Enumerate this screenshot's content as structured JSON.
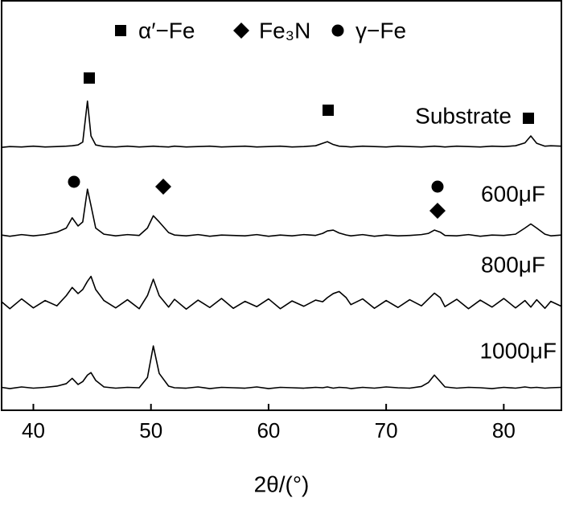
{
  "chart_data": {
    "type": "line",
    "xlabel": "2θ/(°)",
    "legend": [
      {
        "marker": "square",
        "label": "α′−Fe"
      },
      {
        "marker": "diamond",
        "label": "Fe₃N"
      },
      {
        "marker": "circle",
        "label": "γ−Fe"
      }
    ],
    "x": [
      37.3,
      38,
      39,
      40,
      41,
      42,
      42.8,
      43.3,
      43.8,
      44.2,
      44.6,
      44.9,
      45.3,
      46,
      47,
      48,
      49,
      49.7,
      50.2,
      50.7,
      51.5,
      52,
      53,
      54,
      55,
      56,
      57,
      58,
      59,
      60,
      61,
      62,
      63,
      64,
      64.6,
      65,
      65.5,
      66,
      66.6,
      67,
      68,
      69,
      70,
      71,
      72,
      73,
      73.6,
      74.1,
      74.6,
      75,
      76,
      77,
      78,
      79,
      80,
      81,
      81.8,
      82.3,
      82.8,
      83.5,
      84,
      84.9
    ],
    "xlim": [
      37.3,
      84.9
    ],
    "xticks": [
      40,
      50,
      60,
      70,
      80
    ],
    "ylim": [
      0,
      100
    ],
    "series": [
      {
        "name": "Substrate",
        "color": "#000000",
        "values": [
          64.2,
          64.4,
          64.3,
          64.5,
          64.3,
          64.4,
          64.5,
          64.6,
          64.8,
          65.5,
          75.5,
          67,
          64.8,
          64.4,
          64.3,
          64.5,
          64.3,
          64.4,
          64.5,
          64.4,
          64.3,
          64.5,
          64.3,
          64.4,
          64.5,
          64.3,
          64.4,
          64.5,
          64.3,
          64.4,
          64.5,
          64.3,
          64.4,
          64.6,
          65.2,
          65.6,
          64.9,
          64.5,
          64.4,
          64.3,
          64.5,
          64.4,
          64.3,
          64.5,
          64.4,
          64.3,
          64.4,
          64.5,
          64.4,
          64.3,
          64.5,
          64.4,
          64.3,
          64.5,
          64.4,
          64.6,
          65.3,
          67,
          65.2,
          64.5,
          64.6,
          64.5
        ]
      },
      {
        "name": "600μF",
        "color": "#000000",
        "values": [
          42.8,
          42.5,
          42.9,
          42.6,
          42.9,
          43.5,
          44.5,
          47,
          45,
          46,
          54,
          50,
          44.5,
          43,
          42.6,
          42.9,
          42.7,
          44.5,
          47.5,
          46,
          43.4,
          42.8,
          42.6,
          42.9,
          42.5,
          42.8,
          42.7,
          42.6,
          42.9,
          42.5,
          42.8,
          42.6,
          42.9,
          42.7,
          43.2,
          43.8,
          44,
          43.3,
          42.8,
          42.6,
          42.9,
          42.5,
          42.8,
          42.6,
          42.7,
          42.9,
          43.2,
          44,
          43.5,
          42.7,
          42.6,
          42.9,
          42.5,
          42.8,
          42.7,
          43,
          44.5,
          45.5,
          44.5,
          43,
          42.6,
          42.8
        ]
      },
      {
        "name": "800μF",
        "color": "#000000",
        "values": [
          26.5,
          24.8,
          27.2,
          25,
          26.8,
          25.5,
          28,
          30,
          28.5,
          29.5,
          31.5,
          32.7,
          29.5,
          26.8,
          25,
          27,
          24.8,
          28,
          32,
          28,
          25.2,
          27.1,
          24.7,
          26.9,
          25.1,
          27.3,
          24.9,
          26.6,
          25.3,
          27.2,
          24.8,
          26.7,
          25.4,
          26.9,
          26.5,
          27.5,
          28.5,
          29,
          27.5,
          25.8,
          27.2,
          24.9,
          26.8,
          25.1,
          27,
          25.5,
          27.2,
          28.6,
          27.5,
          25.3,
          27.1,
          24.8,
          26.9,
          25.2,
          27.3,
          25,
          26.8,
          25.2,
          27,
          24.9,
          26.6,
          25.4
        ]
      },
      {
        "name": "1000μF",
        "color": "#000000",
        "values": [
          5.6,
          5.3,
          5.7,
          5.4,
          5.6,
          5.9,
          6.5,
          7.8,
          6.3,
          7,
          8.6,
          9.2,
          7.3,
          5.7,
          5.4,
          5.6,
          5.5,
          8,
          15.7,
          9,
          5.9,
          5.5,
          5.4,
          5.7,
          5.3,
          5.6,
          5.5,
          5.4,
          5.7,
          5.3,
          5.6,
          5.5,
          5.4,
          5.6,
          5.5,
          5.7,
          5.4,
          5.6,
          5.5,
          5.3,
          5.6,
          5.4,
          5.7,
          5.5,
          5.4,
          5.8,
          6.8,
          8.6,
          7,
          5.7,
          5.4,
          5.6,
          5.5,
          5.3,
          5.6,
          5.4,
          5.7,
          5.5,
          5.6,
          5.4,
          5.5,
          5.6
        ]
      }
    ]
  }
}
